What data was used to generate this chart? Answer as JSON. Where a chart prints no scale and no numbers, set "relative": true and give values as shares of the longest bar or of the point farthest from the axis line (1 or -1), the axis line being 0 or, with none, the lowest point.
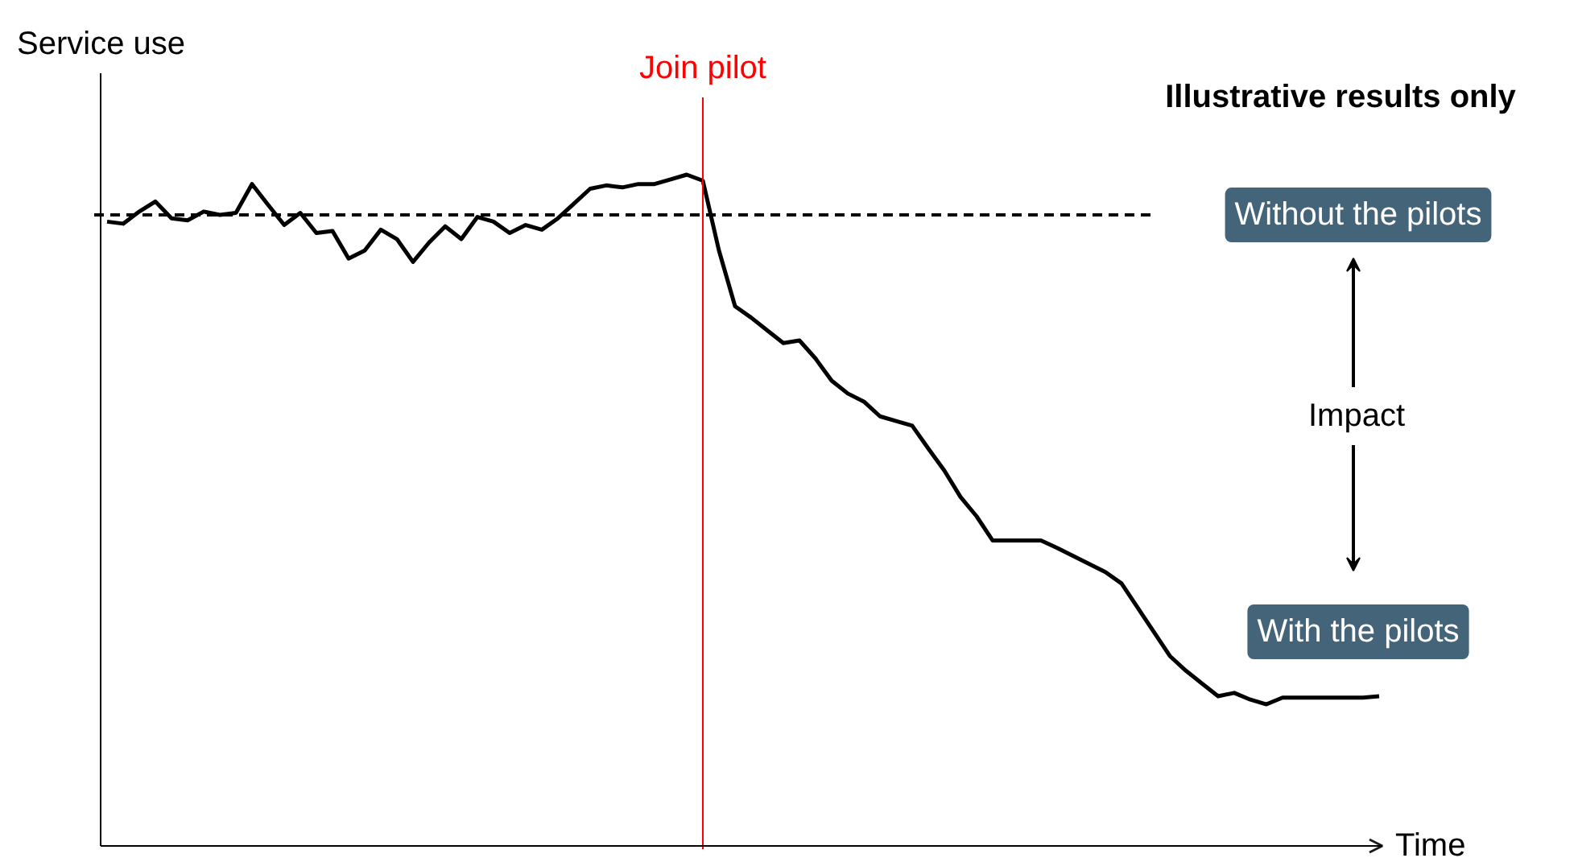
{
  "chart_data": {
    "type": "line",
    "relative": true,
    "xlabel": "Time",
    "ylabel": "Service use",
    "categories": [
      null,
      null,
      null,
      null,
      null,
      null,
      null,
      null,
      null,
      null,
      null,
      null,
      null,
      null,
      null,
      null,
      null,
      null,
      null,
      null,
      null,
      null,
      null,
      null,
      null,
      null,
      null,
      null,
      null,
      null,
      null,
      null,
      null,
      null,
      null,
      null,
      null,
      null,
      null,
      null,
      null,
      null,
      null,
      null,
      null,
      null,
      null,
      null,
      null,
      null,
      null,
      null,
      null,
      null,
      null,
      null,
      null,
      null,
      null,
      null,
      null,
      null,
      null,
      null,
      null,
      null,
      null,
      null,
      null,
      null,
      null,
      null,
      null,
      null,
      null,
      null,
      null,
      null,
      null,
      null
    ],
    "series": [
      {
        "name": "With the pilots",
        "color": "#000000",
        "line_style": "solid",
        "values": [
          0.93,
          0.927,
          0.945,
          0.96,
          0.935,
          0.932,
          0.945,
          0.94,
          0.943,
          0.986,
          0.955,
          0.925,
          0.943,
          0.913,
          0.916,
          0.875,
          0.887,
          0.918,
          0.904,
          0.87,
          0.899,
          0.923,
          0.904,
          0.937,
          0.93,
          0.913,
          0.925,
          0.918,
          0.935,
          0.957,
          0.979,
          0.984,
          0.981,
          0.986,
          0.986,
          0.993,
          1,
          0.991,
          0.887,
          0.804,
          0.787,
          0.768,
          0.749,
          0.753,
          0.726,
          0.693,
          0.674,
          0.662,
          0.64,
          0.633,
          0.626,
          0.592,
          0.559,
          0.52,
          0.491,
          0.455,
          0.455,
          0.455,
          0.455,
          0.444,
          0.432,
          0.42,
          0.408,
          0.391,
          0.355,
          0.319,
          0.283,
          0.261,
          0.242,
          0.223,
          0.228,
          0.218,
          0.211,
          0.221,
          0.221,
          0.221,
          0.221,
          0.221,
          0.221,
          0.223
        ]
      }
    ],
    "ref_lines": [
      {
        "axis": "y",
        "value": 0.94,
        "label": "Without the pilots",
        "color": "#000000",
        "line_style": "dashed"
      }
    ],
    "annotations": [
      "Illustrative results only",
      "Join pilot",
      "Impact"
    ],
    "grid": false,
    "legend": false,
    "tick_labels": false,
    "marker": "none"
  }
}
